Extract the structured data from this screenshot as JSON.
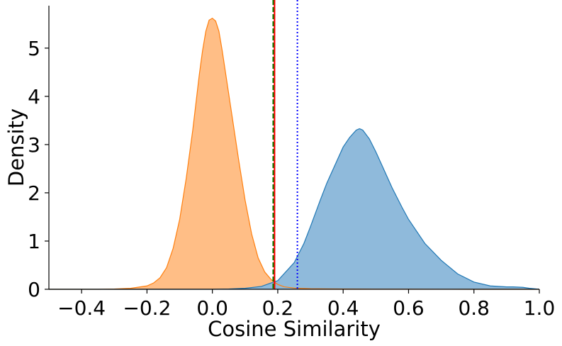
{
  "chart_data": {
    "type": "area",
    "xlabel": "Cosine Similarity",
    "ylabel": "Density",
    "xlim": [
      -0.5,
      1.0
    ],
    "ylim": [
      0,
      5.88
    ],
    "xticks": [
      {
        "value": -0.4,
        "label": "−0.4"
      },
      {
        "value": -0.2,
        "label": "−0.2"
      },
      {
        "value": 0.0,
        "label": "0.0"
      },
      {
        "value": 0.2,
        "label": "0.2"
      },
      {
        "value": 0.4,
        "label": "0.4"
      },
      {
        "value": 0.6,
        "label": "0.6"
      },
      {
        "value": 0.8,
        "label": "0.8"
      },
      {
        "value": 1.0,
        "label": "1.0"
      }
    ],
    "yticks": [
      {
        "value": 0,
        "label": "0"
      },
      {
        "value": 1,
        "label": "1"
      },
      {
        "value": 2,
        "label": "2"
      },
      {
        "value": 3,
        "label": "3"
      },
      {
        "value": 4,
        "label": "4"
      },
      {
        "value": 5,
        "label": "5"
      }
    ],
    "grid": false,
    "series": [
      {
        "fill": "#ffbe86",
        "line": "#ff7f0e",
        "x": [
          -0.5,
          -0.35,
          -0.3,
          -0.25,
          -0.2,
          -0.18,
          -0.16,
          -0.14,
          -0.12,
          -0.1,
          -0.08,
          -0.06,
          -0.04,
          -0.03,
          -0.02,
          -0.01,
          0.0,
          0.01,
          0.02,
          0.03,
          0.04,
          0.06,
          0.08,
          0.1,
          0.12,
          0.14,
          0.16,
          0.18,
          0.2,
          0.22,
          0.25,
          0.3,
          0.35,
          0.4,
          0.5,
          0.6,
          0.7,
          0.8,
          0.9,
          1.0
        ],
        "y": [
          0.0,
          0.0,
          0.005,
          0.02,
          0.07,
          0.13,
          0.24,
          0.45,
          0.85,
          1.45,
          2.3,
          3.3,
          4.45,
          4.95,
          5.35,
          5.58,
          5.62,
          5.56,
          5.35,
          4.95,
          4.5,
          3.6,
          2.7,
          1.85,
          1.15,
          0.65,
          0.36,
          0.2,
          0.1,
          0.05,
          0.025,
          0.012,
          0.008,
          0.005,
          0.003,
          0.002,
          0.001,
          0.0,
          0.0,
          0.0
        ]
      },
      {
        "fill": "#8fbadb",
        "line": "#1f77b4",
        "x": [
          -0.5,
          0.0,
          0.05,
          0.1,
          0.15,
          0.2,
          0.25,
          0.28,
          0.3,
          0.33,
          0.35,
          0.38,
          0.4,
          0.42,
          0.44,
          0.45,
          0.46,
          0.48,
          0.5,
          0.52,
          0.55,
          0.58,
          0.6,
          0.65,
          0.7,
          0.75,
          0.8,
          0.85,
          0.9,
          0.92,
          0.95,
          0.97,
          1.0
        ],
        "y": [
          0.0,
          0.0,
          0.005,
          0.02,
          0.06,
          0.18,
          0.55,
          0.95,
          1.3,
          1.85,
          2.2,
          2.65,
          2.95,
          3.15,
          3.3,
          3.33,
          3.3,
          3.12,
          2.85,
          2.55,
          2.1,
          1.7,
          1.45,
          0.95,
          0.6,
          0.32,
          0.15,
          0.07,
          0.05,
          0.05,
          0.04,
          0.02,
          0.0
        ]
      }
    ],
    "reference_lines": [
      {
        "x": 0.19,
        "color": "#ff0000",
        "style": "solid"
      },
      {
        "x": 0.186,
        "color": "#008000",
        "style": "dashed"
      },
      {
        "x": 0.26,
        "color": "#0000ff",
        "style": "dotted"
      }
    ]
  }
}
